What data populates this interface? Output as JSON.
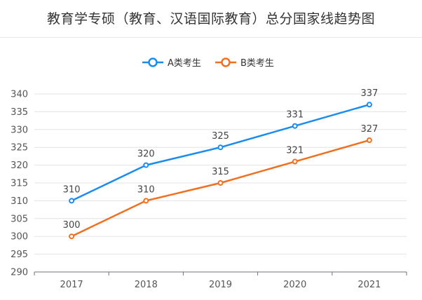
{
  "title": "教育学专硕（教育、汉语国际教育）总分国家线趋势图",
  "chart_data": {
    "type": "line",
    "categories": [
      "2017",
      "2018",
      "2019",
      "2020",
      "2021"
    ],
    "series": [
      {
        "name": "A类考生",
        "color": "#1a8cf0",
        "values": [
          310,
          320,
          325,
          331,
          337
        ]
      },
      {
        "name": "B类考生",
        "color": "#f07020",
        "values": [
          300,
          310,
          315,
          321,
          327
        ]
      }
    ],
    "ylim": [
      290,
      340
    ],
    "yticks": [
      290,
      295,
      300,
      305,
      310,
      315,
      320,
      325,
      330,
      335,
      340
    ],
    "grid": true,
    "legend": "top-center",
    "data_labels": true
  }
}
